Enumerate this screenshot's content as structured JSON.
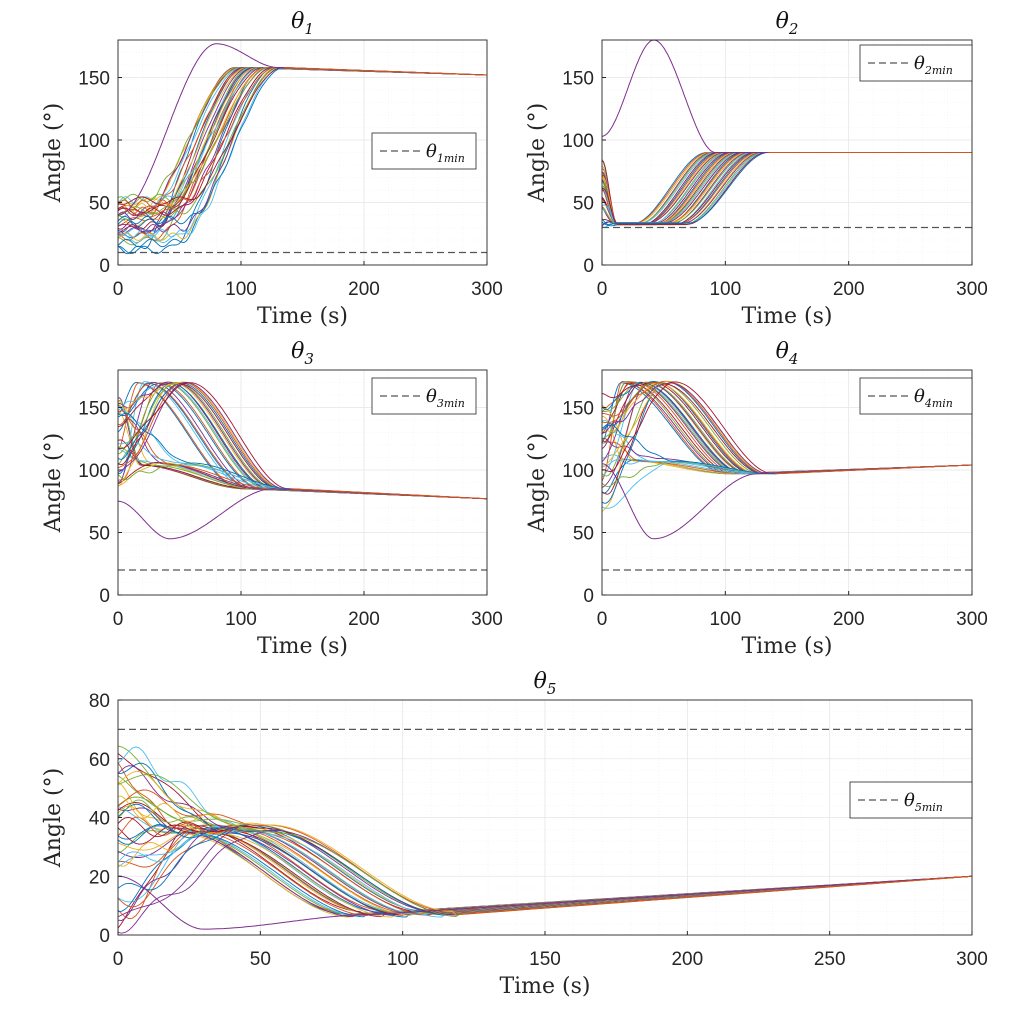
{
  "chart_data": [
    {
      "type": "line",
      "title": "θ1",
      "title_base": "θ",
      "title_sub": "1",
      "xlabel": "Time (s)",
      "ylabel": "Angle (°)",
      "xlim": [
        0,
        300
      ],
      "ylim": [
        0,
        180
      ],
      "xticks": [
        "0",
        "100",
        "200",
        "300"
      ],
      "yticks": [
        "0",
        "50",
        "100",
        "150"
      ],
      "grid": true,
      "legend": {
        "label": "θ1min",
        "base": "θ",
        "sub": "1min",
        "position": "right-middle"
      },
      "threshold": 10,
      "shape": "rise",
      "n_traces": 36,
      "start_range": [
        12,
        55
      ],
      "final_value": 158,
      "end_value": 152,
      "transition_start": [
        15,
        55
      ],
      "transition_end": [
        95,
        135
      ],
      "outlier": {
        "peak_time": 80,
        "peak_value": 177,
        "start_value": 40
      }
    },
    {
      "type": "line",
      "title": "θ2",
      "title_base": "θ",
      "title_sub": "2",
      "xlabel": "Time (s)",
      "ylabel": "Angle (°)",
      "xlim": [
        0,
        300
      ],
      "ylim": [
        0,
        180
      ],
      "xticks": [
        "0",
        "100",
        "200",
        "300"
      ],
      "yticks": [
        "0",
        "50",
        "100",
        "150"
      ],
      "grid": true,
      "legend": {
        "label": "θ2min",
        "base": "θ",
        "sub": "2min",
        "position": "top-right"
      },
      "threshold": 30,
      "shape": "dip-rise",
      "n_traces": 36,
      "start_range": [
        32,
        85
      ],
      "dip_value": 33,
      "final_value": 90,
      "end_value": 90,
      "transition_start": [
        25,
        70
      ],
      "transition_end": [
        85,
        135
      ],
      "outlier": {
        "peak_time": 42,
        "peak_value": 180,
        "start_value": 103
      }
    },
    {
      "type": "line",
      "title": "θ3",
      "title_base": "θ",
      "title_sub": "3",
      "xlabel": "Time (s)",
      "ylabel": "Angle (°)",
      "xlim": [
        0,
        300
      ],
      "ylim": [
        0,
        180
      ],
      "xticks": [
        "0",
        "100",
        "200",
        "300"
      ],
      "yticks": [
        "0",
        "50",
        "100",
        "150"
      ],
      "grid": true,
      "legend": {
        "label": "θ3min",
        "base": "θ",
        "sub": "3min",
        "position": "top-right"
      },
      "threshold": 20,
      "shape": "peak-decay",
      "n_traces": 36,
      "start_range": [
        88,
        160
      ],
      "peak_value": 170,
      "mid_value": 105,
      "final_value": 85,
      "end_value": 77,
      "transition_start": [
        15,
        60
      ],
      "transition_end": [
        100,
        140
      ],
      "outlier": {
        "valley_time": 42,
        "valley_value": 45,
        "start_value": 75,
        "end_value": 85
      }
    },
    {
      "type": "line",
      "title": "θ4",
      "title_base": "θ",
      "title_sub": "4",
      "xlabel": "Time (s)",
      "ylabel": "Angle (°)",
      "xlim": [
        0,
        300
      ],
      "ylim": [
        0,
        180
      ],
      "xticks": [
        "0",
        "100",
        "200",
        "300"
      ],
      "yticks": [
        "0",
        "50",
        "100",
        "150"
      ],
      "grid": true,
      "legend": {
        "label": "θ4min",
        "base": "θ",
        "sub": "4min",
        "position": "top-right"
      },
      "threshold": 20,
      "shape": "peak-decay",
      "n_traces": 36,
      "start_range": [
        62,
        160
      ],
      "peak_value": 170,
      "mid_value": 108,
      "final_value": 97,
      "end_value": 104,
      "transition_start": [
        15,
        60
      ],
      "transition_end": [
        100,
        140
      ],
      "outlier": {
        "valley_time": 42,
        "valley_value": 45,
        "start_value": 105,
        "end_value": 97
      }
    },
    {
      "type": "line",
      "title": "θ5",
      "title_base": "θ",
      "title_sub": "5",
      "xlabel": "Time (s)",
      "ylabel": "Angle (°)",
      "xlim": [
        0,
        300
      ],
      "ylim": [
        0,
        80
      ],
      "xticks": [
        "0",
        "50",
        "100",
        "150",
        "200",
        "250",
        "300"
      ],
      "yticks": [
        "0",
        "20",
        "40",
        "60",
        "80"
      ],
      "grid": true,
      "legend": {
        "label": "θ5min",
        "base": "θ",
        "sub": "5min",
        "position": "right-middle"
      },
      "threshold": 70,
      "shape": "bump-decay",
      "n_traces": 40,
      "start_range": [
        2,
        64
      ],
      "peak_value": 36,
      "final_value": 7,
      "end_value": 20,
      "transition_start": [
        20,
        55
      ],
      "transition_end": [
        80,
        120
      ],
      "outlier": {
        "valley_time": 30,
        "valley_value": 2,
        "start_value": 20,
        "end_value": 7
      }
    }
  ],
  "colors": {
    "series_palette": [
      "#0072BD",
      "#D95319",
      "#EDB120",
      "#7E2F8E",
      "#77AC30",
      "#4DBEEE",
      "#A2142F"
    ],
    "threshold": "#555555",
    "grid": "#e6e6e6",
    "axis": "#262626"
  }
}
